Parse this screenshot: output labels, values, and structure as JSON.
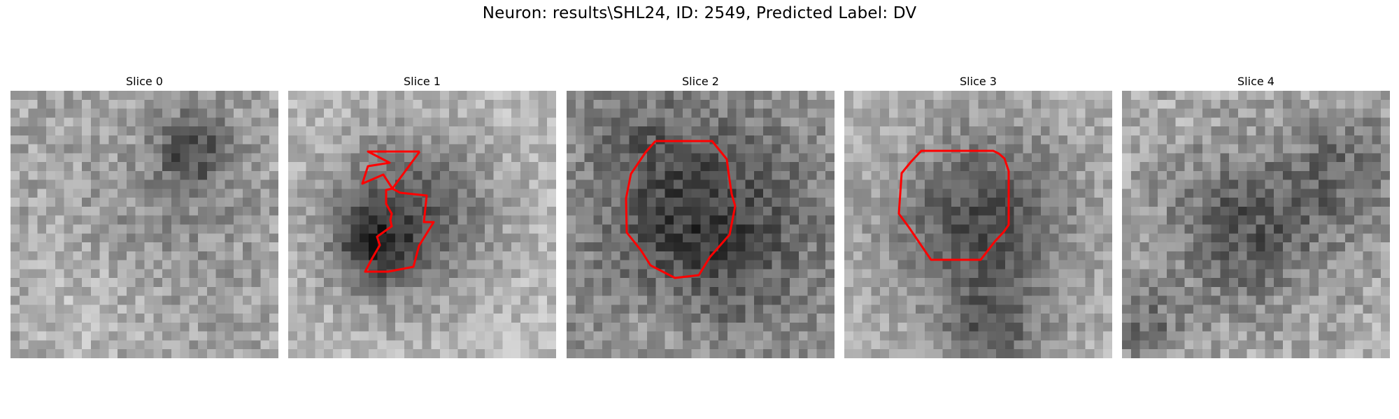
{
  "figure": {
    "title": "Neuron: results\\SHL24, ID: 2549, Predicted Label: DV"
  },
  "slices": [
    {
      "title": "Slice 0",
      "has_contour": false
    },
    {
      "title": "Slice 1",
      "has_contour": true
    },
    {
      "title": "Slice 2",
      "has_contour": true
    },
    {
      "title": "Slice 3",
      "has_contour": true
    },
    {
      "title": "Slice 4",
      "has_contour": false
    }
  ],
  "colors": {
    "contour": "#ff0000",
    "background": "#ffffff"
  },
  "colormap": "gray"
}
